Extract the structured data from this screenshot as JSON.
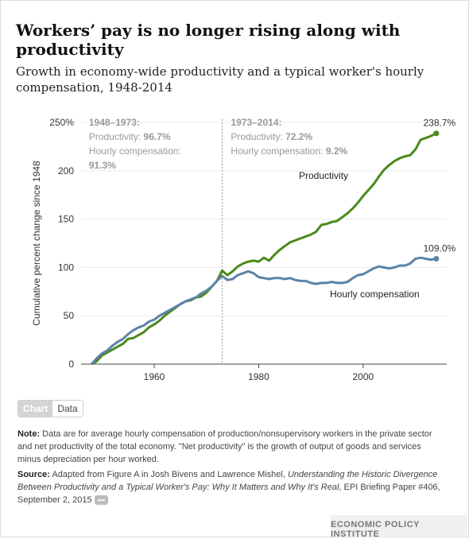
{
  "header": {
    "title": "Workers’ pay is no longer rising along with productivity",
    "subtitle": "Growth in economy-wide productivity and a typical worker's hourly compensation, 1948-2014"
  },
  "toggle": {
    "chart_label": "Chart",
    "data_label": "Data"
  },
  "note": {
    "label": "Note:",
    "text": "Data are for average hourly compensation of production/nonsupervisory workers in the private sector and net productivity of the total economy. \"Net productivity\" is the growth of output of goods and services minus depreciation per hour worked."
  },
  "source": {
    "label": "Source:",
    "prefix": "Adapted from Figure A in Josh Bivens and Lawrence Mishel,",
    "title": "Understanding the Historic Divergence Between Productivity and a Typical Worker's Pay: Why It Matters and Why It's Real",
    "suffix": ", EPI Briefing Paper #406, September 2, 2015",
    "more_label": "•••"
  },
  "footer": {
    "org": "ECONOMIC POLICY INSTITUTE"
  },
  "colors": {
    "productivity": "#4a8a1a",
    "compensation": "#5b83a6",
    "divider": "#9a9a9a",
    "annotation": "#999999"
  },
  "chart_data": {
    "type": "line",
    "ylabel": "Cumulative percent change since 1948",
    "xlabel": "",
    "xlim": [
      1946,
      2016
    ],
    "ylim": [
      0,
      250
    ],
    "x_ticks": [
      1960,
      1980,
      2000
    ],
    "y_ticks": [
      {
        "value": 0,
        "label": "0"
      },
      {
        "value": 50,
        "label": "50"
      },
      {
        "value": 100,
        "label": "100"
      },
      {
        "value": 150,
        "label": "150"
      },
      {
        "value": 200,
        "label": "200"
      },
      {
        "value": 250,
        "label": "250%"
      }
    ],
    "divider_year": 1973,
    "periods": [
      {
        "heading": "1948–1973:",
        "productivity_label": "Productivity:",
        "productivity_value": "96.7%",
        "compensation_label": "Hourly compensation:",
        "compensation_value": "91.3%"
      },
      {
        "heading": "1973–2014:",
        "productivity_label": "Productivity:",
        "productivity_value": "72.2%",
        "compensation_label": "Hourly compensation:",
        "compensation_value": "9.2%"
      }
    ],
    "series": [
      {
        "name": "Productivity",
        "end_label": "238.7%",
        "x": [
          1948,
          1949,
          1950,
          1951,
          1952,
          1953,
          1954,
          1955,
          1956,
          1957,
          1958,
          1959,
          1960,
          1961,
          1962,
          1963,
          1964,
          1965,
          1966,
          1967,
          1968,
          1969,
          1970,
          1971,
          1972,
          1973,
          1974,
          1975,
          1976,
          1977,
          1978,
          1979,
          1980,
          1981,
          1982,
          1983,
          1984,
          1985,
          1986,
          1987,
          1988,
          1989,
          1990,
          1991,
          1992,
          1993,
          1994,
          1995,
          1996,
          1997,
          1998,
          1999,
          2000,
          2001,
          2002,
          2003,
          2004,
          2005,
          2006,
          2007,
          2008,
          2009,
          2010,
          2011,
          2012,
          2013,
          2014
        ],
        "values": [
          0,
          3,
          9,
          12,
          15,
          18,
          21,
          26,
          27,
          30,
          33,
          38,
          41,
          45,
          50,
          54,
          58,
          62,
          65,
          66,
          69,
          70,
          74,
          80,
          86,
          96.7,
          92,
          96,
          101,
          104,
          106,
          107,
          106,
          110,
          107,
          113,
          118,
          122,
          126,
          128,
          130,
          132,
          134,
          137,
          144,
          145,
          147,
          148,
          152,
          156,
          161,
          167,
          174,
          180,
          186,
          194,
          201,
          206,
          210,
          213,
          215,
          216,
          222,
          232,
          234,
          236,
          238.7
        ]
      },
      {
        "name": "Hourly compensation",
        "end_label": "109.0%",
        "x": [
          1948,
          1949,
          1950,
          1951,
          1952,
          1953,
          1954,
          1955,
          1956,
          1957,
          1958,
          1959,
          1960,
          1961,
          1962,
          1963,
          1964,
          1965,
          1966,
          1967,
          1968,
          1969,
          1970,
          1971,
          1972,
          1973,
          1974,
          1975,
          1976,
          1977,
          1978,
          1979,
          1980,
          1981,
          1982,
          1983,
          1984,
          1985,
          1986,
          1987,
          1988,
          1989,
          1990,
          1991,
          1992,
          1993,
          1994,
          1995,
          1996,
          1997,
          1998,
          1999,
          2000,
          2001,
          2002,
          2003,
          2004,
          2005,
          2006,
          2007,
          2008,
          2009,
          2010,
          2011,
          2012,
          2013,
          2014
        ],
        "values": [
          0,
          6,
          11,
          14,
          19,
          23,
          26,
          31,
          35,
          38,
          40,
          44,
          46,
          50,
          53,
          56,
          59,
          62,
          65,
          67,
          69,
          73,
          76,
          80,
          86,
          91.3,
          87,
          88,
          92,
          94,
          96,
          94,
          90,
          89,
          88,
          89,
          89,
          88,
          89,
          87,
          86,
          86,
          84,
          83,
          84,
          84,
          85,
          84,
          84,
          85,
          89,
          92,
          93,
          96,
          99,
          101,
          100,
          99,
          100,
          102,
          102,
          104,
          109,
          110,
          109,
          108,
          109.0
        ]
      }
    ]
  }
}
